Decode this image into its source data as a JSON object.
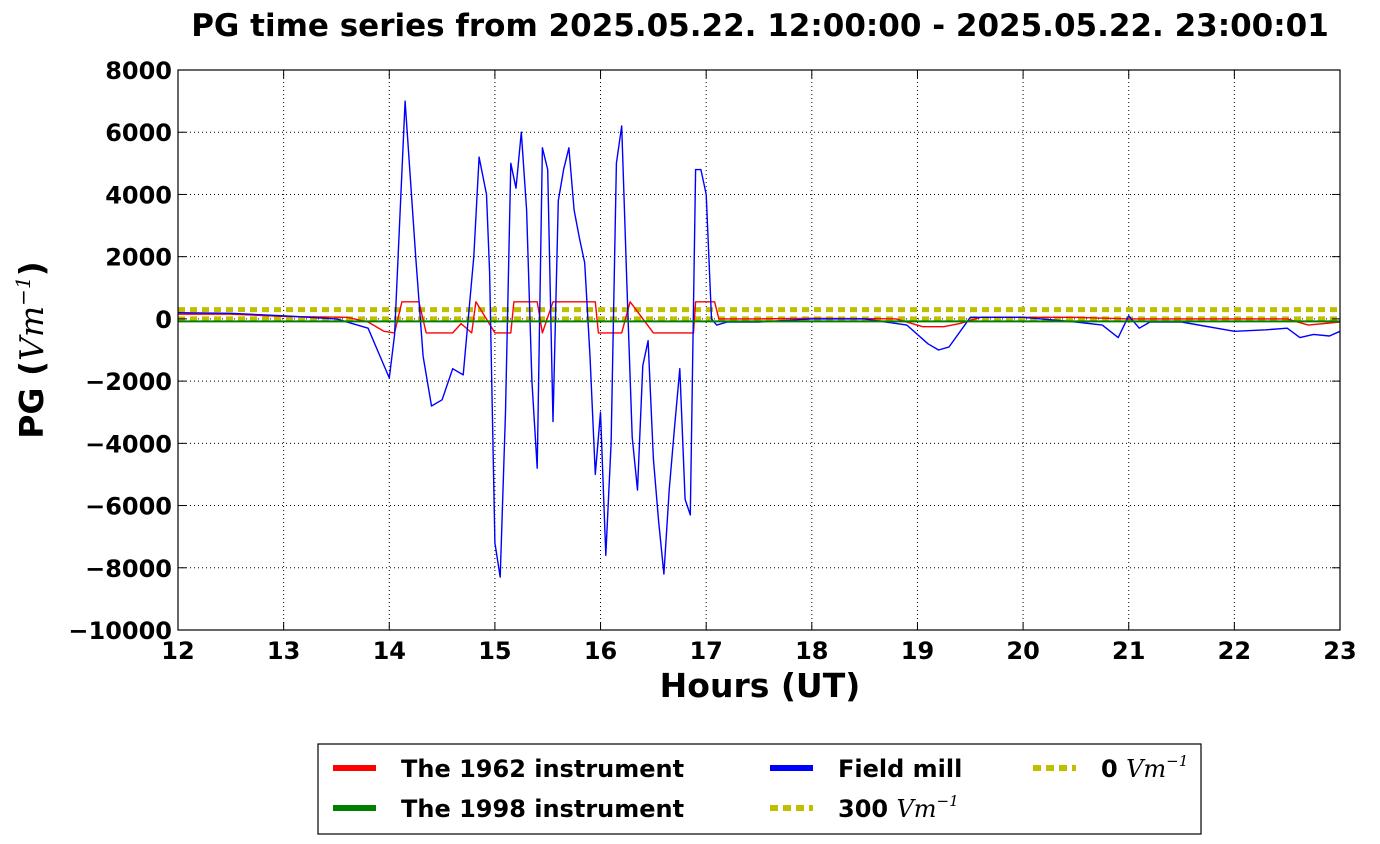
{
  "chart_data": {
    "type": "line",
    "title": "PG time series from 2025.05.22. 12:00:00 - 2025.05.22. 23:00:01",
    "xlabel": "Hours (UT)",
    "ylabel": "PG (",
    "ylabel_unit": "Vm",
    "ylabel_exp": "−1",
    "ylabel_close": ")",
    "xlim": [
      12,
      23
    ],
    "ylim": [
      -10000,
      8000
    ],
    "x_ticks": [
      12,
      13,
      14,
      15,
      16,
      17,
      18,
      19,
      20,
      21,
      22,
      23
    ],
    "y_ticks": [
      8000,
      6000,
      4000,
      2000,
      0,
      -2000,
      -4000,
      -6000,
      -8000,
      -10000
    ],
    "y_tick_labels": [
      "8000",
      "6000",
      "4000",
      "2000",
      "0",
      "−2000",
      "−4000",
      "−6000",
      "−8000",
      "−10000"
    ],
    "grid": true,
    "legend_position": "below",
    "series": [
      {
        "name": "The 1962 instrument",
        "color": "#ff0000",
        "style": "solid",
        "x": [
          12.0,
          12.5,
          13.0,
          13.6,
          13.8,
          13.95,
          14.05,
          14.12,
          14.28,
          14.35,
          14.6,
          14.68,
          14.78,
          14.82,
          15.0,
          15.15,
          15.18,
          15.4,
          15.45,
          15.55,
          15.58,
          15.95,
          15.98,
          16.2,
          16.28,
          16.5,
          16.6,
          16.88,
          16.9,
          17.08,
          17.12,
          17.5,
          18.0,
          18.8,
          19.05,
          19.25,
          19.4,
          19.6,
          20.0,
          20.5,
          21.0,
          21.5,
          22.0,
          22.5,
          22.7,
          23.0
        ],
        "y": [
          150,
          150,
          80,
          50,
          -100,
          -400,
          -450,
          550,
          550,
          -450,
          -450,
          -150,
          -450,
          550,
          -450,
          -450,
          550,
          550,
          -450,
          550,
          550,
          550,
          -450,
          -450,
          550,
          -450,
          -450,
          -450,
          550,
          550,
          0,
          0,
          20,
          0,
          -250,
          -250,
          -150,
          50,
          50,
          50,
          0,
          0,
          0,
          0,
          -200,
          -100
        ]
      },
      {
        "name": "Field mill",
        "color": "#0000ff",
        "style": "solid",
        "x": [
          12.0,
          12.5,
          13.0,
          13.5,
          13.8,
          14.0,
          14.05,
          14.15,
          14.25,
          14.32,
          14.4,
          14.5,
          14.6,
          14.7,
          14.8,
          14.85,
          14.92,
          14.95,
          15.0,
          15.05,
          15.1,
          15.15,
          15.2,
          15.25,
          15.3,
          15.35,
          15.4,
          15.45,
          15.5,
          15.55,
          15.6,
          15.65,
          15.7,
          15.75,
          15.8,
          15.85,
          15.9,
          15.95,
          16.0,
          16.05,
          16.1,
          16.15,
          16.2,
          16.25,
          16.3,
          16.35,
          16.4,
          16.45,
          16.5,
          16.55,
          16.6,
          16.65,
          16.7,
          16.75,
          16.8,
          16.85,
          16.9,
          16.95,
          17.0,
          17.05,
          17.1,
          17.2,
          17.5,
          18.0,
          18.5,
          18.9,
          19.1,
          19.2,
          19.3,
          19.5,
          20.0,
          20.5,
          20.75,
          20.9,
          21.0,
          21.1,
          21.2,
          21.5,
          22.0,
          22.3,
          22.5,
          22.62,
          22.75,
          22.9,
          23.0
        ],
        "y": [
          200,
          180,
          100,
          0,
          -300,
          -1900,
          -500,
          7000,
          2000,
          -1200,
          -2800,
          -2600,
          -1600,
          -1800,
          2000,
          5200,
          4000,
          1500,
          -7200,
          -8300,
          -3000,
          5000,
          4200,
          6000,
          3500,
          -2000,
          -4800,
          5500,
          4800,
          -3300,
          3800,
          4800,
          5500,
          3500,
          2600,
          1800,
          -1200,
          -5000,
          -3000,
          -7600,
          -4000,
          5000,
          6200,
          1000,
          -3800,
          -5500,
          -1500,
          -700,
          -4500,
          -6500,
          -8200,
          -5500,
          -3500,
          -1600,
          -5800,
          -6300,
          4800,
          4800,
          4000,
          0,
          -200,
          -100,
          -100,
          0,
          0,
          -200,
          -800,
          -1000,
          -900,
          50,
          50,
          -100,
          -200,
          -600,
          100,
          -300,
          -100,
          -100,
          -400,
          -350,
          -300,
          -600,
          -500,
          -550,
          -400
        ]
      },
      {
        "name": "The 1998 instrument",
        "color": "#008000",
        "style": "solid",
        "x": [
          12,
          23
        ],
        "y": [
          -80,
          -80
        ]
      },
      {
        "name": "300 Vm−1",
        "label_prefix": "300 ",
        "label_unit": "Vm",
        "label_exp": "−1",
        "color": "#bfbf00",
        "style": "dotted",
        "x": [
          12,
          23
        ],
        "y": [
          300,
          300
        ]
      },
      {
        "name": "0 Vm−1",
        "label_prefix": "0 ",
        "label_unit": "Vm",
        "label_exp": "−1",
        "color": "#bfbf00",
        "style": "dotted",
        "x": [
          12,
          23
        ],
        "y": [
          0,
          0
        ]
      }
    ],
    "legend": [
      {
        "label": "The 1962 instrument",
        "color": "#ff0000",
        "style": "solid"
      },
      {
        "label": "The 1998 instrument",
        "color": "#008000",
        "style": "solid"
      },
      {
        "label": "Field mill",
        "color": "#0000ff",
        "style": "solid"
      },
      {
        "label_prefix": "300 ",
        "label_unit": "Vm",
        "label_exp": "−1",
        "color": "#bfbf00",
        "style": "dotted"
      },
      {
        "label_prefix": "0 ",
        "label_unit": "Vm",
        "label_exp": "−1",
        "color": "#bfbf00",
        "style": "dotted"
      }
    ]
  }
}
